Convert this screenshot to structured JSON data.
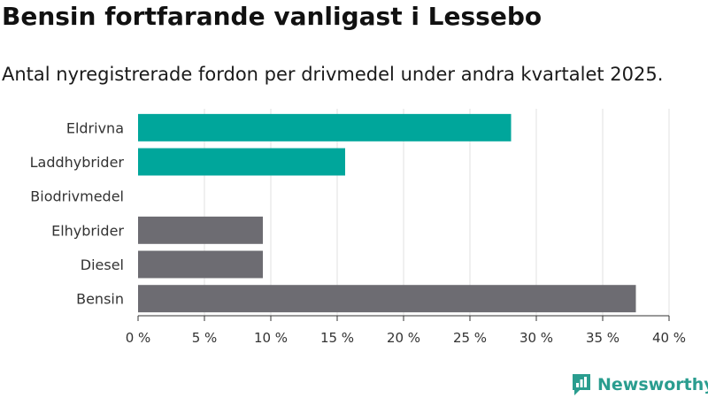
{
  "title": "Bensin fortfarande vanligast i Lessebo",
  "subtitle": "Antal nyregistrerade fordon per drivmedel under andra kvartalet 2025.",
  "logo": {
    "text": "Newsworthy",
    "icon": "bar-chart-logo-icon"
  },
  "colors": {
    "green": "#00a69b",
    "gray": "#6d6c72",
    "grid": "#e2e2e2",
    "axis": "#333333"
  },
  "chart_data": {
    "type": "bar",
    "orientation": "horizontal",
    "categories": [
      "Eldrivna",
      "Laddhybrider",
      "Biodrivmedel",
      "Elhybrider",
      "Diesel",
      "Bensin"
    ],
    "values": [
      28.1,
      15.6,
      0,
      9.4,
      9.4,
      37.5
    ],
    "bar_colors": [
      "green",
      "green",
      "green",
      "gray",
      "gray",
      "gray"
    ],
    "xlim": [
      0,
      40
    ],
    "xticks": [
      0,
      5,
      10,
      15,
      20,
      25,
      30,
      35,
      40
    ],
    "xtick_labels": [
      "0 %",
      "5 %",
      "10 %",
      "15 %",
      "20 %",
      "25 %",
      "30 %",
      "35 %",
      "40 %"
    ],
    "grid": true
  }
}
